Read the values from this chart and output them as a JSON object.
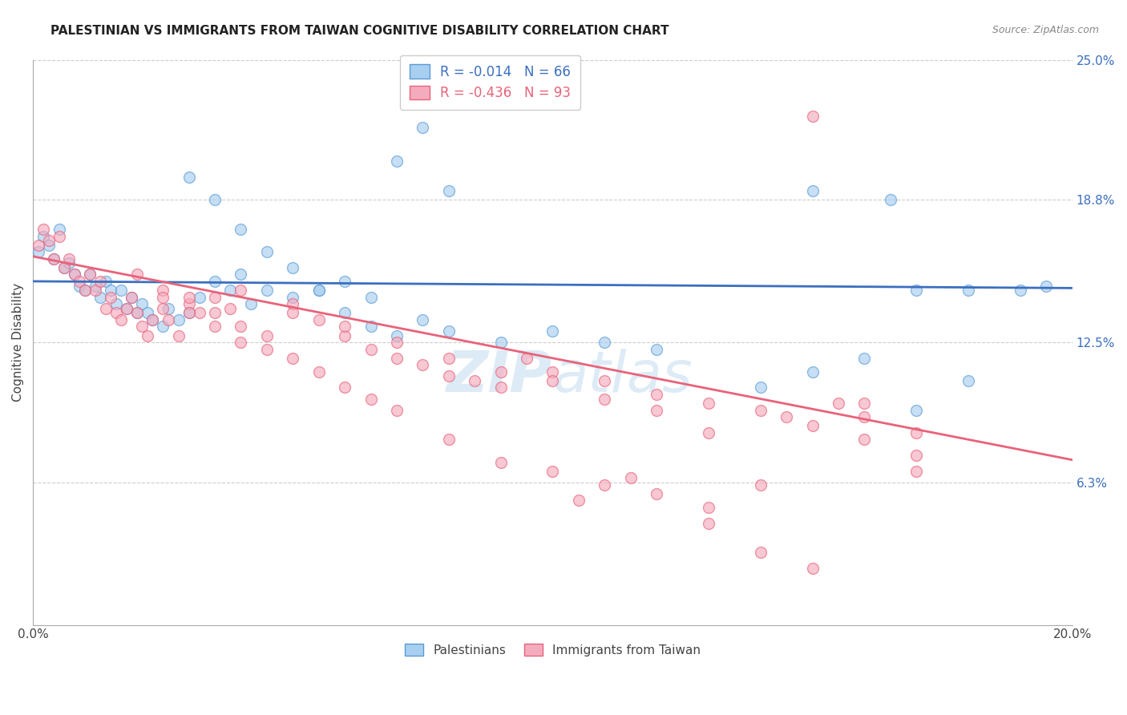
{
  "title": "PALESTINIAN VS IMMIGRANTS FROM TAIWAN COGNITIVE DISABILITY CORRELATION CHART",
  "source": "Source: ZipAtlas.com",
  "ylabel": "Cognitive Disability",
  "xlim": [
    0.0,
    0.2
  ],
  "ylim": [
    0.0,
    0.25
  ],
  "ytick_right_labels": [
    "25.0%",
    "18.8%",
    "12.5%",
    "6.3%"
  ],
  "ytick_right_values": [
    0.25,
    0.188,
    0.125,
    0.063
  ],
  "blue_R": "-0.014",
  "blue_N": "66",
  "pink_R": "-0.436",
  "pink_N": "93",
  "blue_color": "#A8CFF0",
  "pink_color": "#F5ABBE",
  "blue_edge_color": "#5B9BD5",
  "pink_edge_color": "#E8637A",
  "blue_line_color": "#3B6FBF",
  "pink_line_color": "#E8637A",
  "legend_label_blue": "Palestinians",
  "legend_label_pink": "Immigrants from Taiwan",
  "blue_line_y0": 0.152,
  "blue_line_y1": 0.149,
  "pink_line_y0": 0.163,
  "pink_line_y1": 0.073,
  "blue_points_x": [
    0.001,
    0.002,
    0.003,
    0.004,
    0.005,
    0.006,
    0.007,
    0.008,
    0.009,
    0.01,
    0.011,
    0.012,
    0.013,
    0.014,
    0.015,
    0.016,
    0.017,
    0.018,
    0.019,
    0.02,
    0.021,
    0.022,
    0.023,
    0.025,
    0.026,
    0.028,
    0.03,
    0.032,
    0.035,
    0.038,
    0.04,
    0.042,
    0.045,
    0.05,
    0.055,
    0.06,
    0.065,
    0.07,
    0.075,
    0.08,
    0.03,
    0.035,
    0.04,
    0.045,
    0.05,
    0.055,
    0.06,
    0.065,
    0.07,
    0.075,
    0.08,
    0.09,
    0.1,
    0.11,
    0.12,
    0.14,
    0.15,
    0.16,
    0.17,
    0.18,
    0.15,
    0.165,
    0.17,
    0.18,
    0.19,
    0.195
  ],
  "blue_points_y": [
    0.165,
    0.172,
    0.168,
    0.162,
    0.175,
    0.158,
    0.16,
    0.155,
    0.15,
    0.148,
    0.155,
    0.15,
    0.145,
    0.152,
    0.148,
    0.142,
    0.148,
    0.14,
    0.145,
    0.138,
    0.142,
    0.138,
    0.135,
    0.132,
    0.14,
    0.135,
    0.138,
    0.145,
    0.152,
    0.148,
    0.155,
    0.142,
    0.148,
    0.145,
    0.148,
    0.152,
    0.145,
    0.205,
    0.22,
    0.192,
    0.198,
    0.188,
    0.175,
    0.165,
    0.158,
    0.148,
    0.138,
    0.132,
    0.128,
    0.135,
    0.13,
    0.125,
    0.13,
    0.125,
    0.122,
    0.105,
    0.112,
    0.118,
    0.095,
    0.108,
    0.192,
    0.188,
    0.148,
    0.148,
    0.148,
    0.15
  ],
  "pink_points_x": [
    0.001,
    0.002,
    0.003,
    0.004,
    0.005,
    0.006,
    0.007,
    0.008,
    0.009,
    0.01,
    0.011,
    0.012,
    0.013,
    0.014,
    0.015,
    0.016,
    0.017,
    0.018,
    0.019,
    0.02,
    0.021,
    0.022,
    0.023,
    0.025,
    0.026,
    0.028,
    0.03,
    0.032,
    0.035,
    0.038,
    0.02,
    0.025,
    0.03,
    0.035,
    0.04,
    0.045,
    0.05,
    0.055,
    0.06,
    0.065,
    0.07,
    0.075,
    0.08,
    0.085,
    0.09,
    0.095,
    0.1,
    0.11,
    0.12,
    0.13,
    0.14,
    0.15,
    0.16,
    0.17,
    0.04,
    0.05,
    0.06,
    0.07,
    0.08,
    0.09,
    0.1,
    0.11,
    0.12,
    0.025,
    0.03,
    0.035,
    0.04,
    0.045,
    0.05,
    0.055,
    0.06,
    0.065,
    0.07,
    0.08,
    0.09,
    0.1,
    0.11,
    0.12,
    0.13,
    0.14,
    0.15,
    0.16,
    0.17,
    0.155,
    0.145,
    0.13,
    0.115,
    0.105,
    0.13,
    0.14,
    0.15,
    0.16,
    0.17
  ],
  "pink_points_y": [
    0.168,
    0.175,
    0.17,
    0.162,
    0.172,
    0.158,
    0.162,
    0.155,
    0.152,
    0.148,
    0.155,
    0.148,
    0.152,
    0.14,
    0.145,
    0.138,
    0.135,
    0.14,
    0.145,
    0.138,
    0.132,
    0.128,
    0.135,
    0.14,
    0.135,
    0.128,
    0.142,
    0.138,
    0.145,
    0.14,
    0.155,
    0.148,
    0.145,
    0.138,
    0.132,
    0.128,
    0.142,
    0.135,
    0.128,
    0.122,
    0.118,
    0.115,
    0.11,
    0.108,
    0.105,
    0.118,
    0.112,
    0.108,
    0.102,
    0.098,
    0.095,
    0.088,
    0.082,
    0.075,
    0.148,
    0.138,
    0.132,
    0.125,
    0.118,
    0.112,
    0.108,
    0.1,
    0.095,
    0.145,
    0.138,
    0.132,
    0.125,
    0.122,
    0.118,
    0.112,
    0.105,
    0.1,
    0.095,
    0.082,
    0.072,
    0.068,
    0.062,
    0.058,
    0.045,
    0.032,
    0.025,
    0.098,
    0.068,
    0.098,
    0.092,
    0.085,
    0.065,
    0.055,
    0.052,
    0.062,
    0.225,
    0.092,
    0.085
  ]
}
